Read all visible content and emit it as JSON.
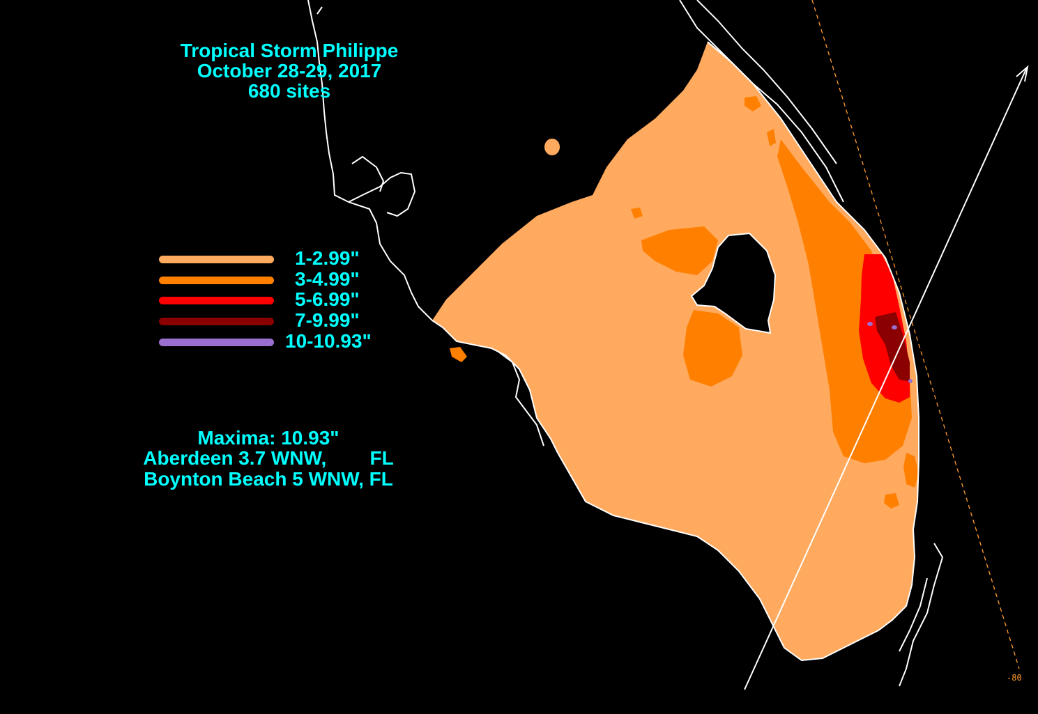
{
  "title": {
    "line1": "Tropical Storm Philippe",
    "line2": "October 28-29, 2017",
    "line3": "680 sites"
  },
  "legend": [
    {
      "label": "1-2.99\"",
      "color": "#ffaa5f"
    },
    {
      "label": "3-4.99\"",
      "color": "#ff8000"
    },
    {
      "label": "5-6.99\"",
      "color": "#ff0000"
    },
    {
      "label": "7-9.99\"",
      "color": "#8b0000"
    },
    {
      "label": "10-10.93\"",
      "color": "#9b6fd0"
    }
  ],
  "maxima": {
    "line1": "Maxima: 10.93\"",
    "line2": "Aberdeen 3.7 WNW,        FL",
    "line3": "Boynton Beach 5 WNW, FL"
  },
  "longitude_label": "-80",
  "colors": {
    "background": "#000000",
    "text": "#00ffff",
    "coastline": "#ffffff",
    "track": "#ffffff",
    "meridian": "#ff9a30"
  }
}
